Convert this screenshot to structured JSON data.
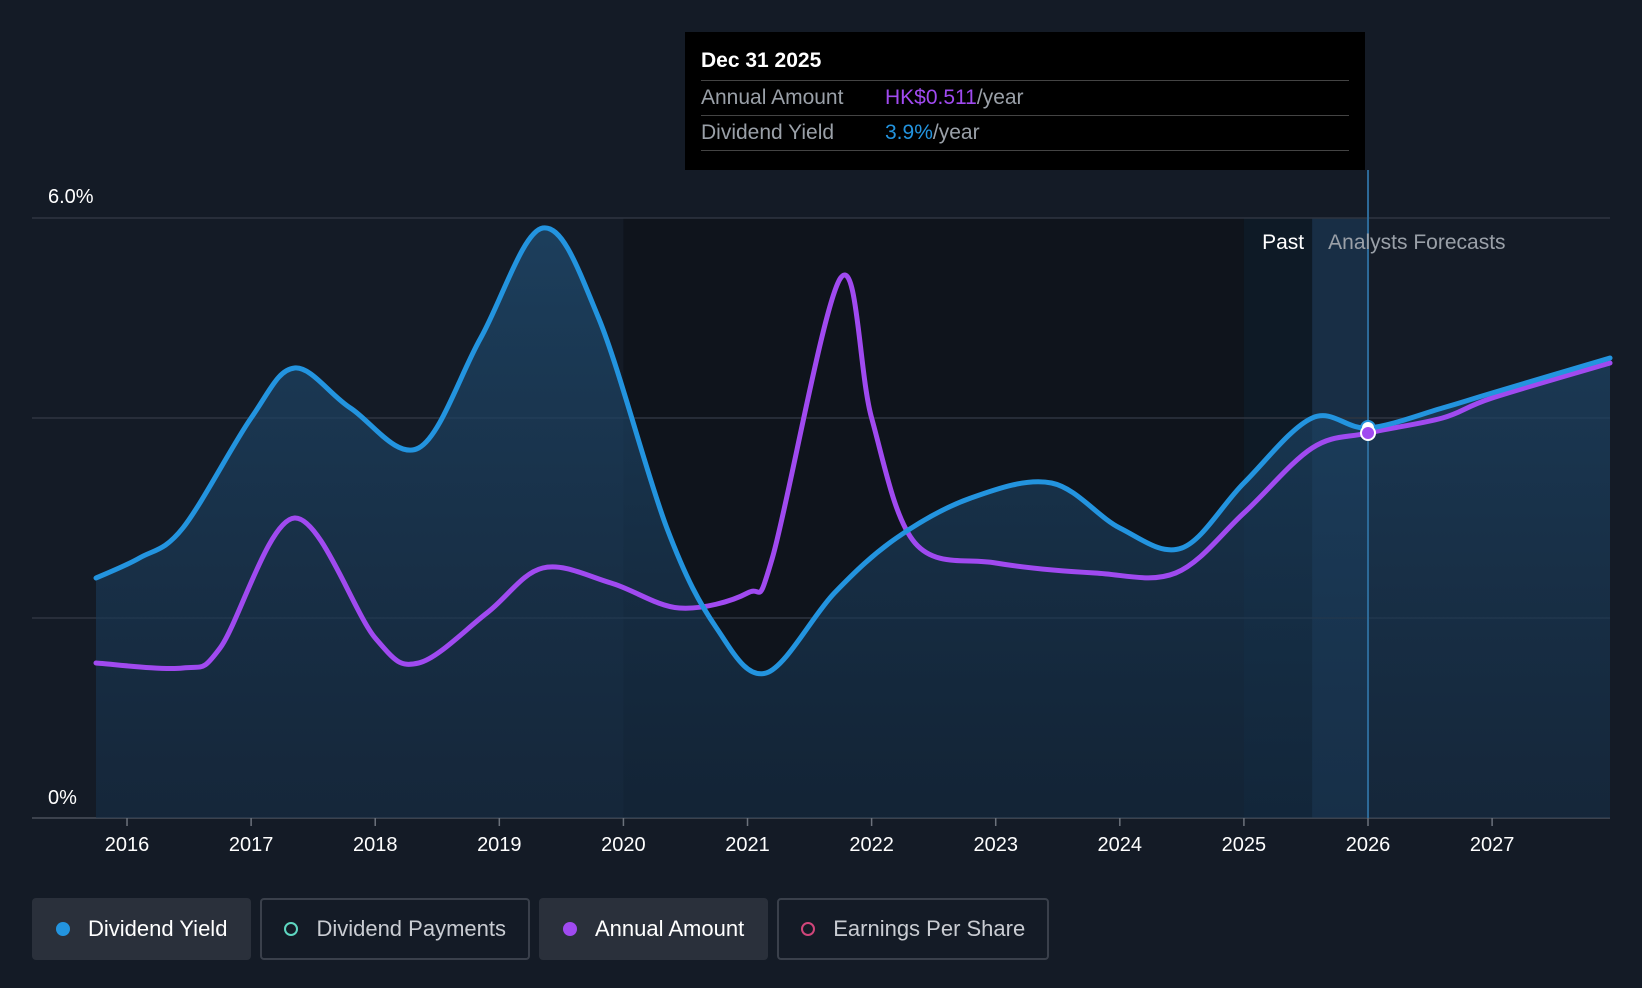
{
  "tooltip": {
    "date": "Dec 31 2025",
    "annual_label": "Annual Amount",
    "annual_value": "HK$0.511",
    "annual_unit": "/year",
    "yield_label": "Dividend Yield",
    "yield_value": "3.9%",
    "yield_unit": "/year"
  },
  "regions": {
    "past": "Past",
    "forecast": "Analysts Forecasts"
  },
  "legend": [
    {
      "label": "Dividend Yield",
      "color": "#2394df",
      "filled": true,
      "active": true
    },
    {
      "label": "Dividend Payments",
      "color": "#5ed6c0",
      "filled": false,
      "active": false
    },
    {
      "label": "Annual Amount",
      "color": "#a04af0",
      "filled": true,
      "active": true
    },
    {
      "label": "Earnings Per Share",
      "color": "#d0457a",
      "filled": false,
      "active": false
    }
  ],
  "colors": {
    "yield": "#2394df",
    "annual": "#a04af0",
    "background": "#141b26"
  },
  "chart_data": {
    "type": "line",
    "y_tick_labels": [
      "0%",
      "6.0%"
    ],
    "ylim": [
      0,
      6
    ],
    "xlim": [
      2015.5,
      2027.95
    ],
    "x_ticks": [
      2016,
      2017,
      2018,
      2019,
      2020,
      2021,
      2022,
      2023,
      2024,
      2025,
      2026,
      2027
    ],
    "grid": true,
    "past_until": 2026.0,
    "series": [
      {
        "name": "Dividend Yield",
        "x": [
          2015.75,
          2016.1,
          2016.45,
          2017.0,
          2017.35,
          2017.8,
          2018.35,
          2018.85,
          2019.35,
          2019.8,
          2020.35,
          2020.75,
          2021.15,
          2021.7,
          2022.2,
          2022.8,
          2023.45,
          2024.0,
          2024.5,
          2025.0,
          2025.55,
          2026.0,
          2026.6,
          2027.0,
          2027.95
        ],
        "y": [
          2.4,
          2.6,
          2.9,
          4.0,
          4.5,
          4.1,
          3.7,
          4.8,
          5.9,
          5.0,
          2.9,
          1.9,
          1.45,
          2.25,
          2.8,
          3.2,
          3.35,
          2.9,
          2.7,
          3.35,
          4.0,
          3.9,
          4.1,
          4.25,
          4.6
        ]
      },
      {
        "name": "Annual Amount",
        "x": [
          2015.75,
          2016.45,
          2016.75,
          2017.35,
          2018.0,
          2018.35,
          2018.9,
          2019.35,
          2019.9,
          2020.45,
          2021.0,
          2021.2,
          2021.75,
          2022.0,
          2022.35,
          2023.0,
          2023.8,
          2024.45,
          2025.0,
          2025.55,
          2026.0,
          2026.6,
          2027.0,
          2027.95
        ],
        "y": [
          1.55,
          1.5,
          1.7,
          3.0,
          1.8,
          1.55,
          2.05,
          2.5,
          2.35,
          2.1,
          2.25,
          2.6,
          5.4,
          4.0,
          2.75,
          2.55,
          2.45,
          2.45,
          3.05,
          3.7,
          3.85,
          4.0,
          4.2,
          4.55
        ]
      }
    ],
    "highlight_point": {
      "x": 2026.0,
      "yield": 3.9,
      "annual": 3.85
    }
  }
}
